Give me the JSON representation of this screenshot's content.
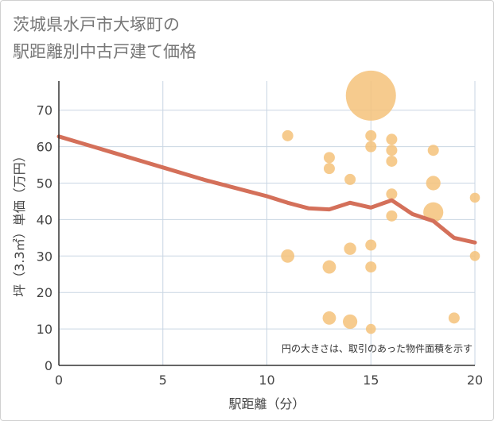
{
  "title_line1": "茨城県水戸市大塚町の",
  "title_line2": "駅距離別中古戸建て価格",
  "chart_data": {
    "type": "scatter",
    "title": "茨城県水戸市大塚町の駅距離別中古戸建て価格",
    "xlabel": "駅距離（分）",
    "ylabel": "坪（3.3㎡）単価（万円）",
    "xlim": [
      0,
      20
    ],
    "ylim": [
      0,
      78
    ],
    "xticks": [
      0,
      5,
      10,
      15,
      20
    ],
    "yticks": [
      0,
      10,
      20,
      30,
      40,
      50,
      60,
      70
    ],
    "grid": true,
    "annotation": "円の大きさは、取引のあった物件面積を示す",
    "colors": {
      "points": "#f5c27a",
      "trend": "#d4705a",
      "grid": "#c9d6e3"
    },
    "points": [
      {
        "x": 11,
        "y": 63,
        "size": 1
      },
      {
        "x": 11,
        "y": 30,
        "size": 1.2
      },
      {
        "x": 13,
        "y": 57,
        "size": 1
      },
      {
        "x": 13,
        "y": 54,
        "size": 1
      },
      {
        "x": 13,
        "y": 27,
        "size": 1.2
      },
      {
        "x": 13,
        "y": 13,
        "size": 1.2
      },
      {
        "x": 14,
        "y": 51,
        "size": 1
      },
      {
        "x": 14,
        "y": 32,
        "size": 1.1
      },
      {
        "x": 14,
        "y": 12,
        "size": 1.3
      },
      {
        "x": 15,
        "y": 74,
        "size": 4.5
      },
      {
        "x": 15,
        "y": 63,
        "size": 1
      },
      {
        "x": 15,
        "y": 60,
        "size": 1
      },
      {
        "x": 15,
        "y": 33,
        "size": 1
      },
      {
        "x": 15,
        "y": 27,
        "size": 1
      },
      {
        "x": 15,
        "y": 10,
        "size": 0.9
      },
      {
        "x": 16,
        "y": 62,
        "size": 1
      },
      {
        "x": 16,
        "y": 59,
        "size": 1
      },
      {
        "x": 16,
        "y": 56,
        "size": 1
      },
      {
        "x": 16,
        "y": 47,
        "size": 1
      },
      {
        "x": 16,
        "y": 41,
        "size": 1
      },
      {
        "x": 18,
        "y": 59,
        "size": 1
      },
      {
        "x": 18,
        "y": 50,
        "size": 1.3
      },
      {
        "x": 18,
        "y": 42,
        "size": 1.8
      },
      {
        "x": 19,
        "y": 13,
        "size": 1
      },
      {
        "x": 20,
        "y": 46,
        "size": 0.9
      },
      {
        "x": 20,
        "y": 30,
        "size": 0.9
      }
    ],
    "trend": {
      "x": [
        0,
        1,
        2,
        3,
        4,
        5,
        6,
        7,
        8,
        9,
        10,
        11,
        12,
        13,
        14,
        15,
        16,
        17,
        18,
        19,
        20
      ],
      "y": [
        62.8,
        61.1,
        59.4,
        57.7,
        56.0,
        54.3,
        52.6,
        50.9,
        49.4,
        47.9,
        46.4,
        44.6,
        43.1,
        42.8,
        44.6,
        43.3,
        45.3,
        41.5,
        39.6,
        35.0,
        33.7
      ]
    }
  }
}
